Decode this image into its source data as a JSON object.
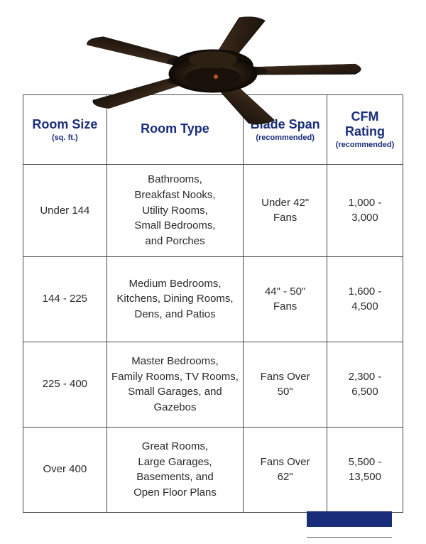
{
  "type": "table",
  "colors": {
    "header_text": "#1a2d7a",
    "body_text": "#2a2a2a",
    "border": "#4a4a4a",
    "background": "#ffffff",
    "blade": "#3a2a1e",
    "motor": "#1c140d",
    "logo_bar": "#1a2d7a"
  },
  "columns": [
    {
      "label": "Room Size",
      "sub": "(sq. ft.)"
    },
    {
      "label": "Room Type",
      "sub": ""
    },
    {
      "label": "Blade Span",
      "sub": "(recommended)"
    },
    {
      "label": "CFM Rating",
      "sub": "(recommended)"
    }
  ],
  "rows": [
    {
      "size": "Under 144",
      "type": "Bathrooms,\nBreakfast Nooks,\nUtility Rooms,\nSmall Bedrooms,\nand Porches",
      "span": "Under 42\"\nFans",
      "cfm": "1,000 -\n3,000"
    },
    {
      "size": "144 - 225",
      "type": "Medium Bedrooms,\nKitchens, Dining Rooms,\nDens, and Patios",
      "span": "44\" - 50\"\nFans",
      "cfm": "1,600 -\n4,500"
    },
    {
      "size": "225 - 400",
      "type": "Master Bedrooms,\nFamily Rooms, TV Rooms,\nSmall Garages, and\nGazebos",
      "span": "Fans Over\n50\"",
      "cfm": "2,300 -\n6,500"
    },
    {
      "size": "Over 400",
      "type": "Great Rooms,\nLarge Garages,\nBasements, and\nOpen Floor Plans",
      "span": "Fans Over\n62\"",
      "cfm": "5,500 -\n13,500"
    }
  ],
  "fan": {
    "blade_count": 5,
    "blade_fill": "#3a2a1e",
    "blade_stroke": "#1c140d",
    "motor_fill": "#1c140d",
    "motor_highlight": "#826548"
  }
}
